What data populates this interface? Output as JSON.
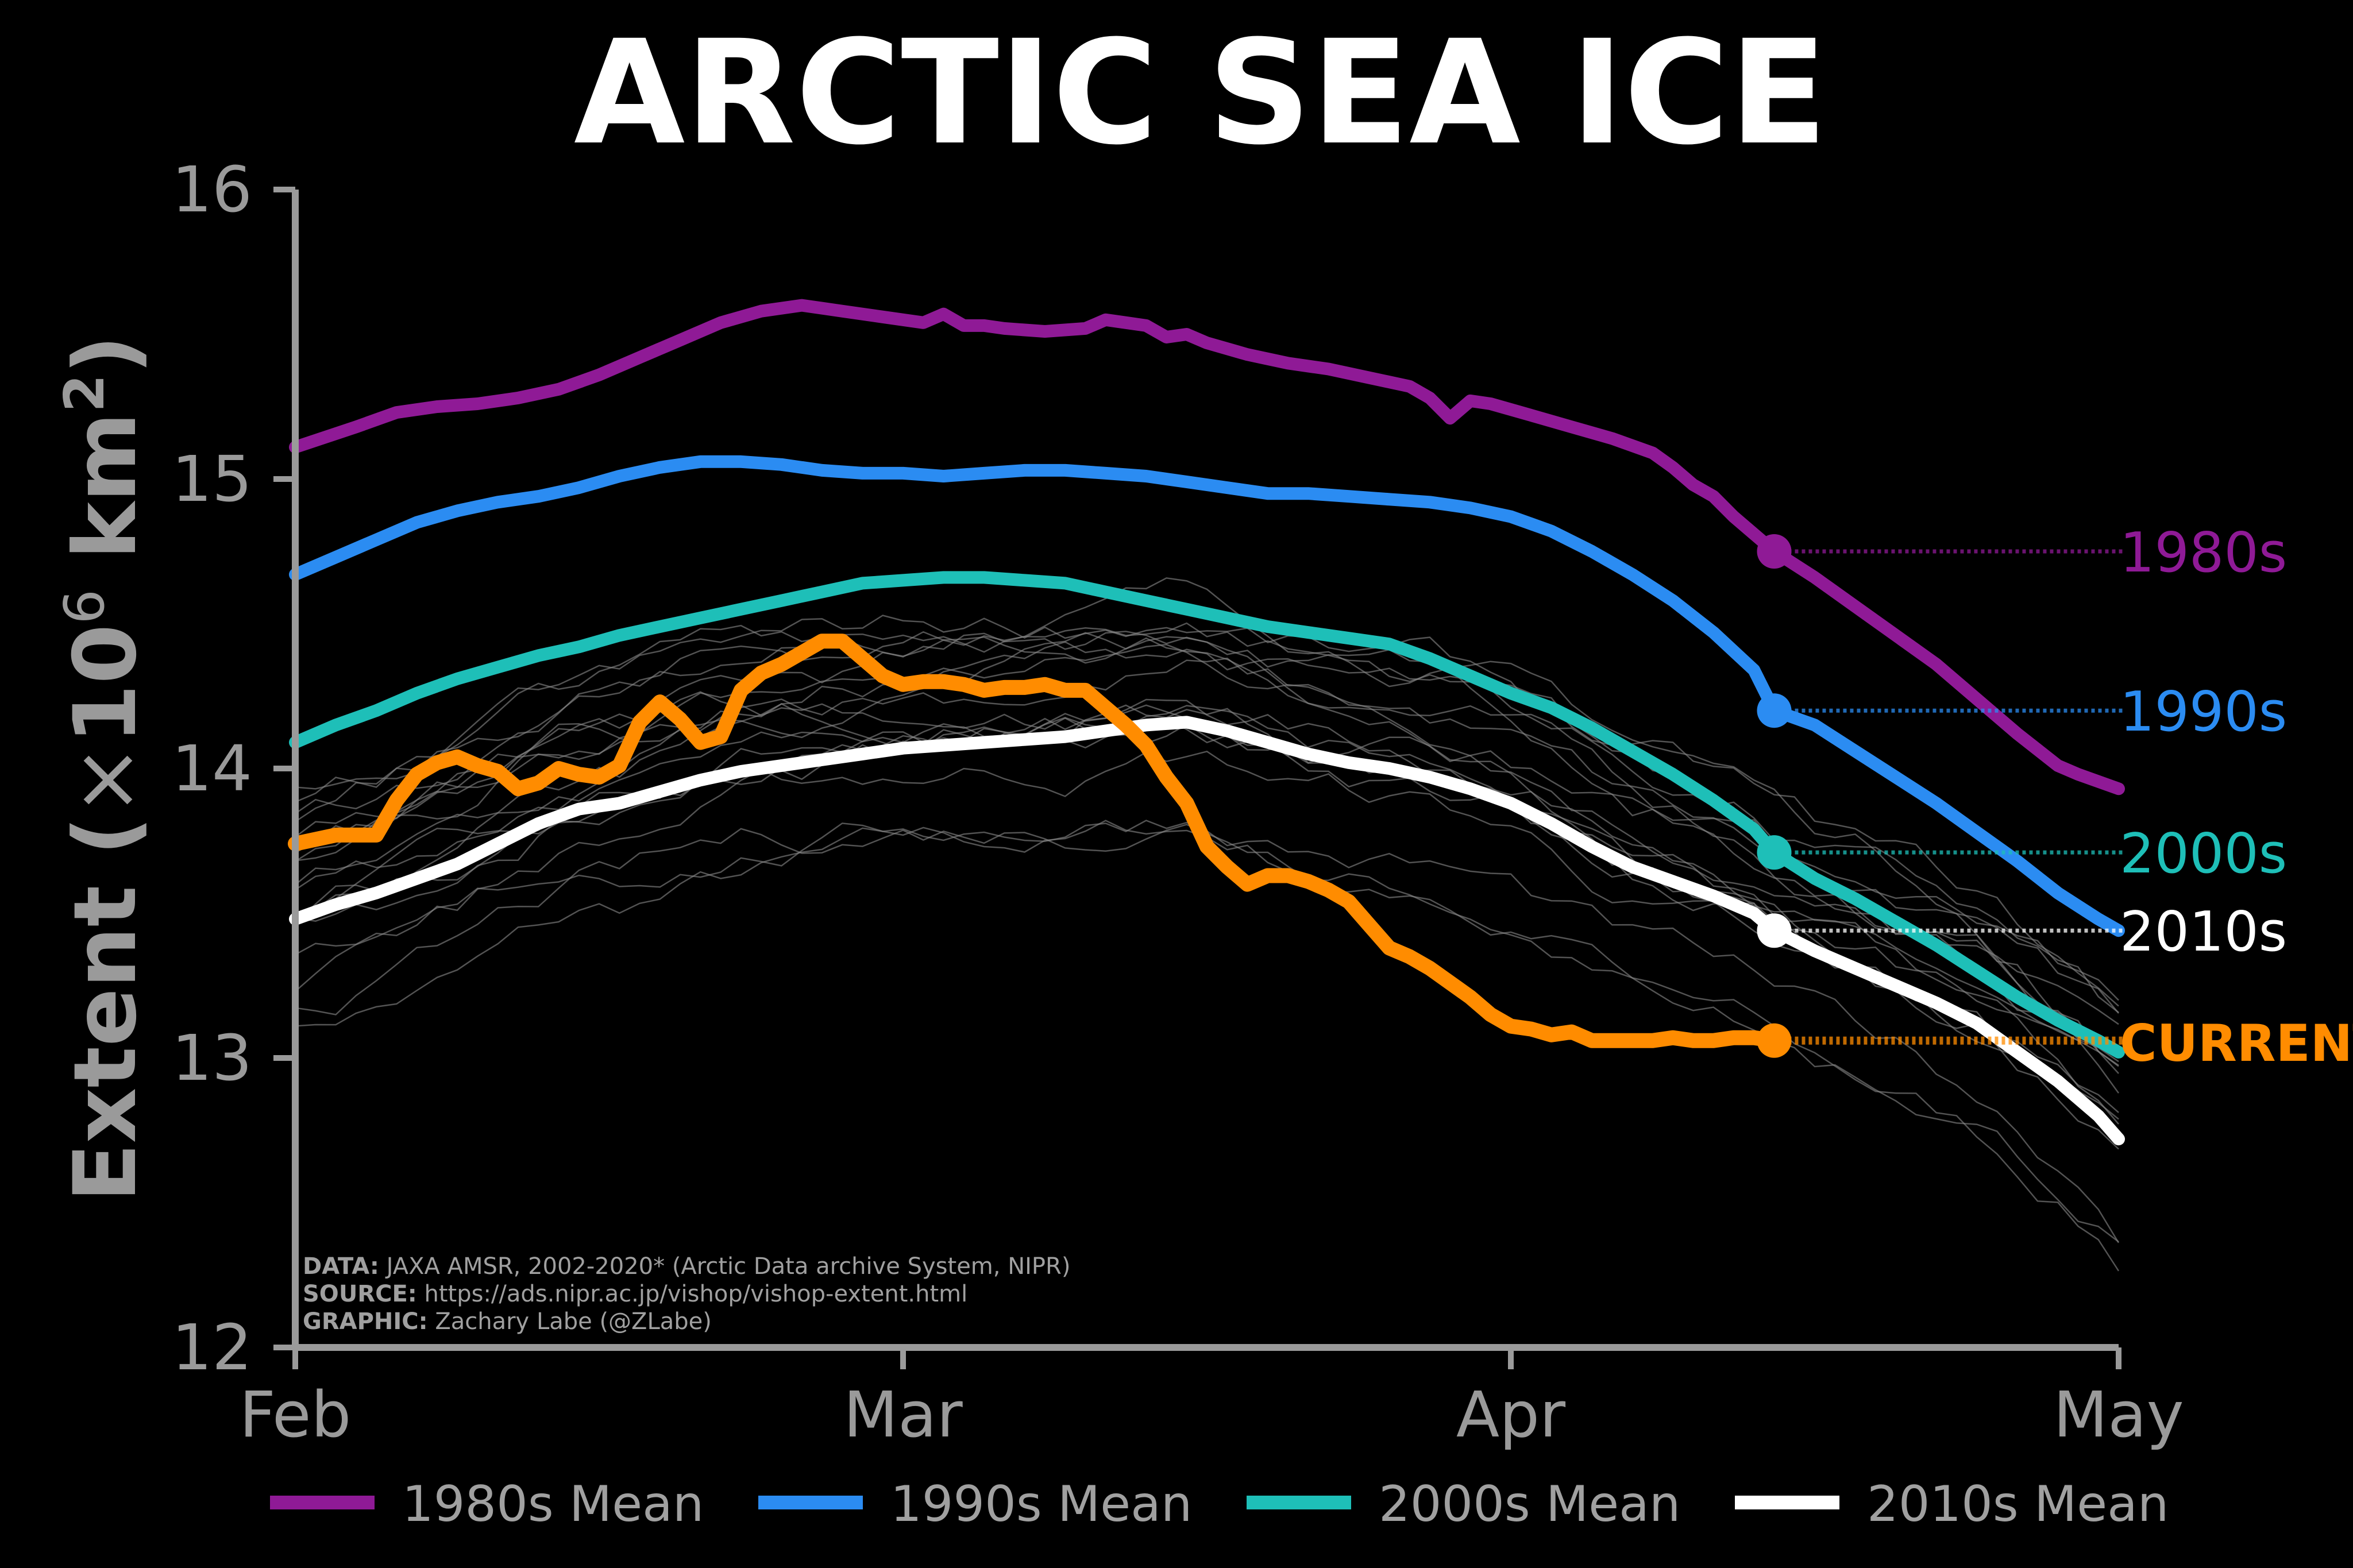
{
  "chart_data": {
    "type": "line",
    "title": "ARCTIC SEA ICE",
    "ylabel": "Extent (×10⁶ km²)",
    "ylabel_prefix": "Extent (",
    "ylabel_mult": "×",
    "ylabel_base": "10",
    "ylabel_exp": "6",
    "ylabel_unit": " km",
    "ylabel_unit_exp": "2",
    "ylabel_suffix": ")",
    "ylim": [
      12,
      16
    ],
    "yticks": [
      12,
      13,
      14,
      15,
      16
    ],
    "xlim": [
      0,
      90
    ],
    "xtick_positions": [
      0,
      30,
      60,
      90
    ],
    "xtick_labels": [
      "Feb",
      "Mar",
      "Apr",
      "May"
    ],
    "grid": false,
    "legend_position": "bottom",
    "current_day": 73,
    "credits": [
      {
        "label": "DATA:",
        "text": " JAXA AMSR, 2002-2020* (Arctic Data archive System, NIPR)"
      },
      {
        "label": "SOURCE:",
        "text": " https://ads.nipr.ac.jp/vishop/vishop-extent.html"
      },
      {
        "label": "GRAPHIC:",
        "text": " Zachary Labe (@ZLabe)"
      }
    ],
    "series": [
      {
        "name": "1980s Mean",
        "end_label": "1980s",
        "color": "#8f1a96",
        "x": [
          0,
          3,
          5,
          7,
          9,
          11,
          13,
          15,
          17,
          19,
          21,
          23,
          25,
          26,
          27,
          29,
          31,
          32,
          33,
          34,
          35,
          37,
          39,
          40,
          41,
          42,
          43,
          44,
          45,
          47,
          49,
          51,
          53,
          55,
          56,
          57,
          58,
          59,
          61,
          63,
          65,
          67,
          68,
          69,
          70,
          71,
          73,
          75,
          77,
          79,
          81,
          83,
          85,
          87,
          88,
          90
        ],
        "values": [
          15.11,
          15.18,
          15.23,
          15.25,
          15.26,
          15.28,
          15.31,
          15.36,
          15.42,
          15.48,
          15.54,
          15.58,
          15.6,
          15.59,
          15.58,
          15.56,
          15.54,
          15.57,
          15.53,
          15.53,
          15.52,
          15.51,
          15.52,
          15.55,
          15.54,
          15.53,
          15.49,
          15.5,
          15.47,
          15.43,
          15.4,
          15.38,
          15.35,
          15.32,
          15.28,
          15.21,
          15.27,
          15.26,
          15.22,
          15.18,
          15.14,
          15.09,
          15.04,
          14.98,
          14.94,
          14.87,
          14.75,
          14.66,
          14.56,
          14.46,
          14.36,
          14.24,
          14.12,
          14.01,
          13.98,
          13.93
        ]
      },
      {
        "name": "1990s Mean",
        "end_label": "1990s",
        "color": "#2b8cf2",
        "x": [
          0,
          2,
          4,
          6,
          8,
          10,
          12,
          14,
          16,
          18,
          20,
          22,
          24,
          26,
          28,
          30,
          32,
          34,
          36,
          38,
          40,
          42,
          44,
          46,
          48,
          50,
          52,
          54,
          56,
          58,
          60,
          62,
          64,
          66,
          68,
          70,
          72,
          73,
          75,
          77,
          79,
          81,
          83,
          85,
          87,
          89,
          90
        ],
        "values": [
          14.67,
          14.73,
          14.79,
          14.85,
          14.89,
          14.92,
          14.94,
          14.97,
          15.01,
          15.04,
          15.06,
          15.06,
          15.05,
          15.03,
          15.02,
          15.02,
          15.01,
          15.02,
          15.03,
          15.03,
          15.02,
          15.01,
          14.99,
          14.97,
          14.95,
          14.95,
          14.94,
          14.93,
          14.92,
          14.9,
          14.87,
          14.82,
          14.75,
          14.67,
          14.58,
          14.47,
          14.34,
          14.2,
          14.15,
          14.06,
          13.97,
          13.88,
          13.78,
          13.68,
          13.57,
          13.48,
          13.44
        ]
      },
      {
        "name": "2000s Mean",
        "end_label": "2000s",
        "color": "#1ebfb8",
        "x": [
          0,
          2,
          4,
          6,
          8,
          10,
          12,
          14,
          16,
          18,
          20,
          22,
          24,
          26,
          28,
          30,
          32,
          34,
          36,
          38,
          40,
          42,
          44,
          46,
          48,
          50,
          52,
          54,
          56,
          58,
          60,
          62,
          64,
          66,
          68,
          70,
          72,
          73,
          75,
          77,
          79,
          81,
          83,
          85,
          87,
          89,
          90
        ],
        "values": [
          14.09,
          14.15,
          14.2,
          14.26,
          14.31,
          14.35,
          14.39,
          14.42,
          14.46,
          14.49,
          14.52,
          14.55,
          14.58,
          14.61,
          14.64,
          14.65,
          14.66,
          14.66,
          14.65,
          14.64,
          14.61,
          14.58,
          14.55,
          14.52,
          14.49,
          14.47,
          14.45,
          14.43,
          14.38,
          14.32,
          14.26,
          14.21,
          14.14,
          14.06,
          13.98,
          13.89,
          13.79,
          13.71,
          13.62,
          13.55,
          13.47,
          13.39,
          13.3,
          13.21,
          13.13,
          13.06,
          13.02
        ]
      },
      {
        "name": "2010s Mean",
        "end_label": "2010s",
        "color": "#ffffff",
        "x": [
          0,
          2,
          4,
          6,
          8,
          10,
          12,
          14,
          16,
          18,
          20,
          22,
          24,
          26,
          28,
          30,
          32,
          34,
          36,
          38,
          40,
          42,
          44,
          46,
          48,
          50,
          52,
          54,
          56,
          58,
          60,
          62,
          64,
          66,
          68,
          70,
          72,
          73,
          75,
          77,
          79,
          81,
          83,
          85,
          87,
          89,
          90
        ],
        "values": [
          13.48,
          13.53,
          13.57,
          13.62,
          13.67,
          13.74,
          13.81,
          13.86,
          13.88,
          13.92,
          13.96,
          13.99,
          14.01,
          14.03,
          14.05,
          14.07,
          14.08,
          14.09,
          14.1,
          14.11,
          14.13,
          14.15,
          14.16,
          14.13,
          14.09,
          14.05,
          14.02,
          14.0,
          13.97,
          13.93,
          13.88,
          13.81,
          13.73,
          13.66,
          13.61,
          13.56,
          13.5,
          13.44,
          13.37,
          13.31,
          13.25,
          13.19,
          13.12,
          13.02,
          12.92,
          12.8,
          12.72
        ]
      },
      {
        "name": "Current",
        "end_label": "CURRENT",
        "color": "#ff8c00",
        "x": [
          0,
          2,
          4,
          5,
          6,
          7,
          8,
          9,
          10,
          11,
          12,
          13,
          14,
          15,
          16,
          17,
          18,
          19,
          20,
          21,
          22,
          23,
          24,
          25,
          26,
          27,
          28,
          29,
          30,
          31,
          32,
          33,
          34,
          35,
          36,
          37,
          38,
          39,
          40,
          41,
          42,
          43,
          44,
          45,
          46,
          47,
          48,
          49,
          50,
          51,
          52,
          53,
          54,
          55,
          56,
          57,
          58,
          59,
          60,
          61,
          62,
          63,
          64,
          65,
          66,
          67,
          68,
          69,
          70,
          71,
          72,
          73
        ],
        "values": [
          13.74,
          13.77,
          13.77,
          13.89,
          13.98,
          14.02,
          14.04,
          14.01,
          13.99,
          13.93,
          13.95,
          14.0,
          13.98,
          13.97,
          14.01,
          14.16,
          14.23,
          14.17,
          14.09,
          14.11,
          14.27,
          14.33,
          14.36,
          14.4,
          14.44,
          14.44,
          14.38,
          14.32,
          14.29,
          14.3,
          14.3,
          14.29,
          14.27,
          14.28,
          14.28,
          14.29,
          14.27,
          14.27,
          14.21,
          14.15,
          14.08,
          13.97,
          13.88,
          13.73,
          13.66,
          13.6,
          13.63,
          13.63,
          13.61,
          13.58,
          13.54,
          13.46,
          13.38,
          13.35,
          13.31,
          13.26,
          13.21,
          13.15,
          13.11,
          13.1,
          13.08,
          13.09,
          13.06,
          13.06,
          13.06,
          13.06,
          13.07,
          13.06,
          13.06,
          13.07,
          13.07,
          13.06
        ]
      }
    ]
  }
}
